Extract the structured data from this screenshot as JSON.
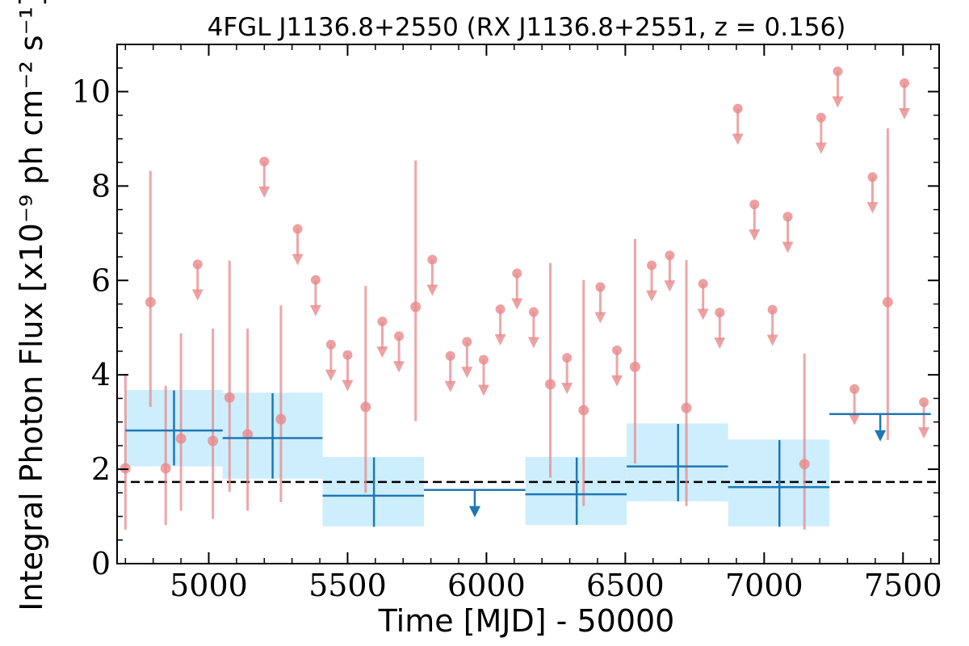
{
  "chart_data": {
    "type": "scatter",
    "title": "4FGL J1136.8+2550 (RX J1136.8+2551, z = 0.156)",
    "xlabel": "Time [MJD] - 50000",
    "ylabel": "Integral Photon Flux [x10⁻⁹ ph cm⁻² s⁻¹]",
    "xlim": [
      4670,
      7630
    ],
    "ylim": [
      0,
      11
    ],
    "xticks": [
      "5000",
      "5500",
      "6000",
      "6500",
      "7000",
      "7500"
    ],
    "yticks": [
      "0",
      "2",
      "4",
      "6",
      "8",
      "10"
    ],
    "baseline": 1.73,
    "colors": {
      "short_points": "#e8898b",
      "long_bins": "#1f77b4",
      "long_bands": "#cdeefd",
      "baseline": "#000000"
    },
    "series": [
      {
        "kind": "short-detections",
        "points": [
          {
            "x": 4700,
            "y": 2.02,
            "lo": 0.72,
            "hi": 4.02
          },
          {
            "x": 4790,
            "y": 5.54,
            "lo": 3.32,
            "hi": 8.32
          },
          {
            "x": 4845,
            "y": 2.02,
            "lo": 0.82,
            "hi": 3.77
          },
          {
            "x": 4900,
            "y": 2.65,
            "lo": 1.12,
            "hi": 4.88
          },
          {
            "x": 5015,
            "y": 2.6,
            "lo": 0.95,
            "hi": 4.98
          },
          {
            "x": 5075,
            "y": 3.52,
            "lo": 1.52,
            "hi": 6.42
          },
          {
            "x": 5140,
            "y": 2.74,
            "lo": 1.12,
            "hi": 4.98
          },
          {
            "x": 5260,
            "y": 3.06,
            "lo": 1.3,
            "hi": 5.47
          },
          {
            "x": 5565,
            "y": 3.32,
            "lo": 1.5,
            "hi": 5.88
          },
          {
            "x": 5745,
            "y": 5.44,
            "lo": 3.02,
            "hi": 8.54
          },
          {
            "x": 6230,
            "y": 3.8,
            "lo": 1.82,
            "hi": 6.37
          },
          {
            "x": 6350,
            "y": 3.25,
            "lo": 1.22,
            "hi": 6.01
          },
          {
            "x": 6535,
            "y": 4.17,
            "lo": 2.12,
            "hi": 6.88
          },
          {
            "x": 6720,
            "y": 3.3,
            "lo": 1.22,
            "hi": 6.43
          },
          {
            "x": 7145,
            "y": 2.11,
            "lo": 0.72,
            "hi": 4.45
          },
          {
            "x": 7445,
            "y": 5.54,
            "lo": 2.62,
            "hi": 9.22
          }
        ]
      },
      {
        "kind": "short-upper-limits",
        "points": [
          {
            "x": 4960,
            "y": 6.34
          },
          {
            "x": 5200,
            "y": 8.52
          },
          {
            "x": 5320,
            "y": 7.09
          },
          {
            "x": 5385,
            "y": 6.01
          },
          {
            "x": 5440,
            "y": 4.64
          },
          {
            "x": 5500,
            "y": 4.42
          },
          {
            "x": 5625,
            "y": 5.13
          },
          {
            "x": 5685,
            "y": 4.82
          },
          {
            "x": 5805,
            "y": 6.44
          },
          {
            "x": 5870,
            "y": 4.4
          },
          {
            "x": 5930,
            "y": 4.7
          },
          {
            "x": 5990,
            "y": 4.32
          },
          {
            "x": 6050,
            "y": 5.39
          },
          {
            "x": 6110,
            "y": 6.15
          },
          {
            "x": 6170,
            "y": 5.33
          },
          {
            "x": 6290,
            "y": 4.36
          },
          {
            "x": 6410,
            "y": 5.86
          },
          {
            "x": 6470,
            "y": 4.52
          },
          {
            "x": 6595,
            "y": 6.32
          },
          {
            "x": 6660,
            "y": 6.53
          },
          {
            "x": 6780,
            "y": 5.93
          },
          {
            "x": 6840,
            "y": 5.32
          },
          {
            "x": 6905,
            "y": 9.64
          },
          {
            "x": 6965,
            "y": 7.61
          },
          {
            "x": 7030,
            "y": 5.38
          },
          {
            "x": 7085,
            "y": 7.35
          },
          {
            "x": 7205,
            "y": 9.45
          },
          {
            "x": 7265,
            "y": 10.43
          },
          {
            "x": 7325,
            "y": 3.7
          },
          {
            "x": 7390,
            "y": 8.19
          },
          {
            "x": 7505,
            "y": 10.18
          },
          {
            "x": 7575,
            "y": 3.42
          }
        ]
      },
      {
        "kind": "long-bins",
        "points": [
          {
            "x0": 4700,
            "x1": 5050,
            "x": 4875,
            "y": 2.82,
            "lo": 2.08,
            "hi": 3.67,
            "band": [
              2.06,
              3.68
            ]
          },
          {
            "x0": 5050,
            "x1": 5410,
            "x": 5230,
            "y": 2.66,
            "lo": 1.8,
            "hi": 3.61,
            "band": [
              1.8,
              3.62
            ]
          },
          {
            "x0": 5410,
            "x1": 5775,
            "x": 5595,
            "y": 1.44,
            "lo": 0.78,
            "hi": 2.25,
            "band": [
              0.79,
              2.26
            ]
          },
          {
            "x0": 6140,
            "x1": 6505,
            "x": 6325,
            "y": 1.47,
            "lo": 0.82,
            "hi": 2.25,
            "band": [
              0.82,
              2.26
            ]
          },
          {
            "x0": 6505,
            "x1": 6870,
            "x": 6690,
            "y": 2.06,
            "lo": 1.32,
            "hi": 2.96,
            "band": [
              1.32,
              2.97
            ]
          },
          {
            "x0": 6870,
            "x1": 7235,
            "x": 7055,
            "y": 1.62,
            "lo": 0.78,
            "hi": 2.62,
            "band": [
              0.79,
              2.63
            ]
          }
        ]
      },
      {
        "kind": "long-upper-limits",
        "points": [
          {
            "x0": 5775,
            "x1": 6140,
            "x": 5958,
            "y": 1.56
          },
          {
            "x0": 7235,
            "x1": 7600,
            "x": 7418,
            "y": 3.17
          }
        ]
      }
    ]
  }
}
